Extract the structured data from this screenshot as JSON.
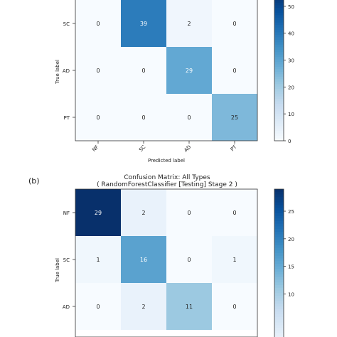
{
  "chart_data": [
    {
      "type": "heatmap",
      "panel_label": "",
      "title": "",
      "subtitle": "",
      "xlabel": "Predicted label",
      "ylabel": "True label",
      "x_tick_labels": [
        "NF",
        "SC",
        "AD",
        "PT"
      ],
      "y_tick_labels": [
        "SC",
        "AD",
        "PT"
      ],
      "matrix": [
        [
          0,
          39,
          2,
          0
        ],
        [
          0,
          0,
          29,
          0
        ],
        [
          0,
          0,
          0,
          25
        ]
      ],
      "colorbar": {
        "ticks": [
          0,
          10,
          20,
          30,
          40,
          50
        ],
        "max": 55
      },
      "colormap": "Blues"
    },
    {
      "type": "heatmap",
      "panel_label": "(b)",
      "title": "Confusion Matrix: All Types",
      "subtitle": "( RandomForestClassifier [Testing] Stage 2 )",
      "xlabel": "",
      "ylabel": "True label",
      "x_tick_labels": [],
      "y_tick_labels": [
        "NF",
        "SC",
        "AD"
      ],
      "matrix": [
        [
          29,
          2,
          0,
          0
        ],
        [
          1,
          16,
          0,
          1
        ],
        [
          0,
          2,
          11,
          0
        ]
      ],
      "colorbar": {
        "ticks": [
          10,
          15,
          20,
          25
        ],
        "max": 29
      },
      "colormap": "Blues"
    }
  ]
}
